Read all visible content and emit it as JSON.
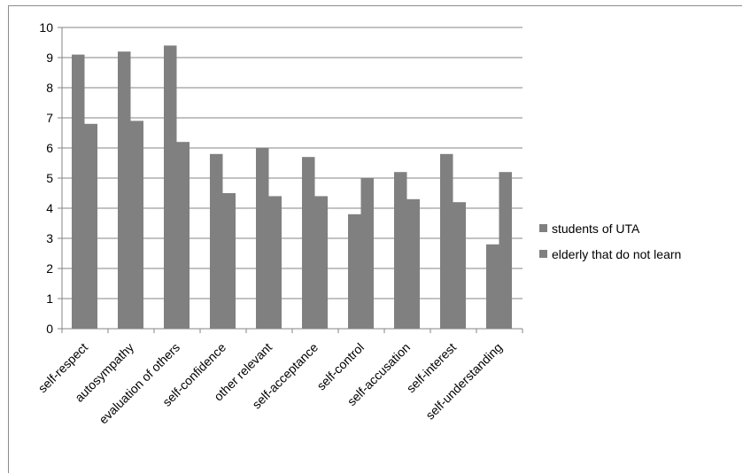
{
  "chart_data": {
    "type": "bar",
    "title": "",
    "xlabel": "",
    "ylabel": "",
    "ylim": [
      0,
      10
    ],
    "yticks": [
      "0",
      "1",
      "2",
      "3",
      "4",
      "5",
      "6",
      "7",
      "8",
      "9",
      "10"
    ],
    "grid": true,
    "legend_position": "right",
    "categories": [
      "self-respect",
      "autosympathy",
      "evaluation of others",
      "self-confidence",
      "other relevant",
      "self-acceptance",
      "self-control",
      "self-accusation",
      "self-interest",
      "self-understanding"
    ],
    "series": [
      {
        "name": "students of UTA",
        "color": "#808080",
        "values": [
          9.1,
          9.2,
          9.4,
          5.8,
          6.0,
          5.7,
          3.8,
          5.2,
          5.8,
          2.8
        ]
      },
      {
        "name": "elderly that do not learn",
        "color": "#808080",
        "values": [
          6.8,
          6.9,
          6.2,
          4.5,
          4.4,
          4.4,
          5.0,
          4.3,
          4.2,
          5.2
        ]
      }
    ]
  }
}
